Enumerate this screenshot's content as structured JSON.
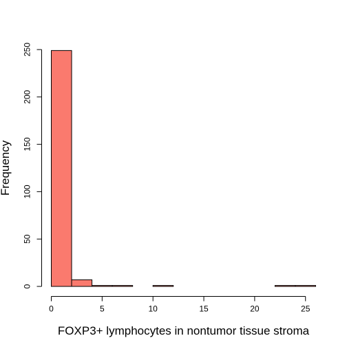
{
  "chart_data": {
    "type": "bar",
    "subtype": "histogram",
    "title": "",
    "xlabel": "FOXP3+ lymphocytes in nontumor tissue stroma",
    "ylabel": "Frequency",
    "bins": [
      {
        "from": 0,
        "to": 2,
        "count": 249
      },
      {
        "from": 2,
        "to": 4,
        "count": 7
      },
      {
        "from": 4,
        "to": 6,
        "count": 1
      },
      {
        "from": 6,
        "to": 8,
        "count": 1
      },
      {
        "from": 8,
        "to": 10,
        "count": 0
      },
      {
        "from": 10,
        "to": 12,
        "count": 1
      },
      {
        "from": 12,
        "to": 14,
        "count": 0
      },
      {
        "from": 14,
        "to": 16,
        "count": 0
      },
      {
        "from": 16,
        "to": 18,
        "count": 0
      },
      {
        "from": 18,
        "to": 20,
        "count": 0
      },
      {
        "from": 20,
        "to": 22,
        "count": 0
      },
      {
        "from": 22,
        "to": 24,
        "count": 1
      },
      {
        "from": 24,
        "to": 26,
        "count": 1
      }
    ],
    "xlim": [
      0,
      26
    ],
    "ylim": [
      0,
      250
    ],
    "xticks": [
      0,
      5,
      10,
      15,
      20,
      25
    ],
    "yticks": [
      0,
      50,
      100,
      150,
      200,
      250
    ],
    "xtick_labels": [
      "0",
      "5",
      "10",
      "15",
      "20",
      "25"
    ],
    "ytick_labels": [
      "0",
      "50",
      "100",
      "150",
      "200",
      "250"
    ],
    "bar_color": "#fa7a6e",
    "bar_edge_color": "#000000",
    "grid": false
  }
}
